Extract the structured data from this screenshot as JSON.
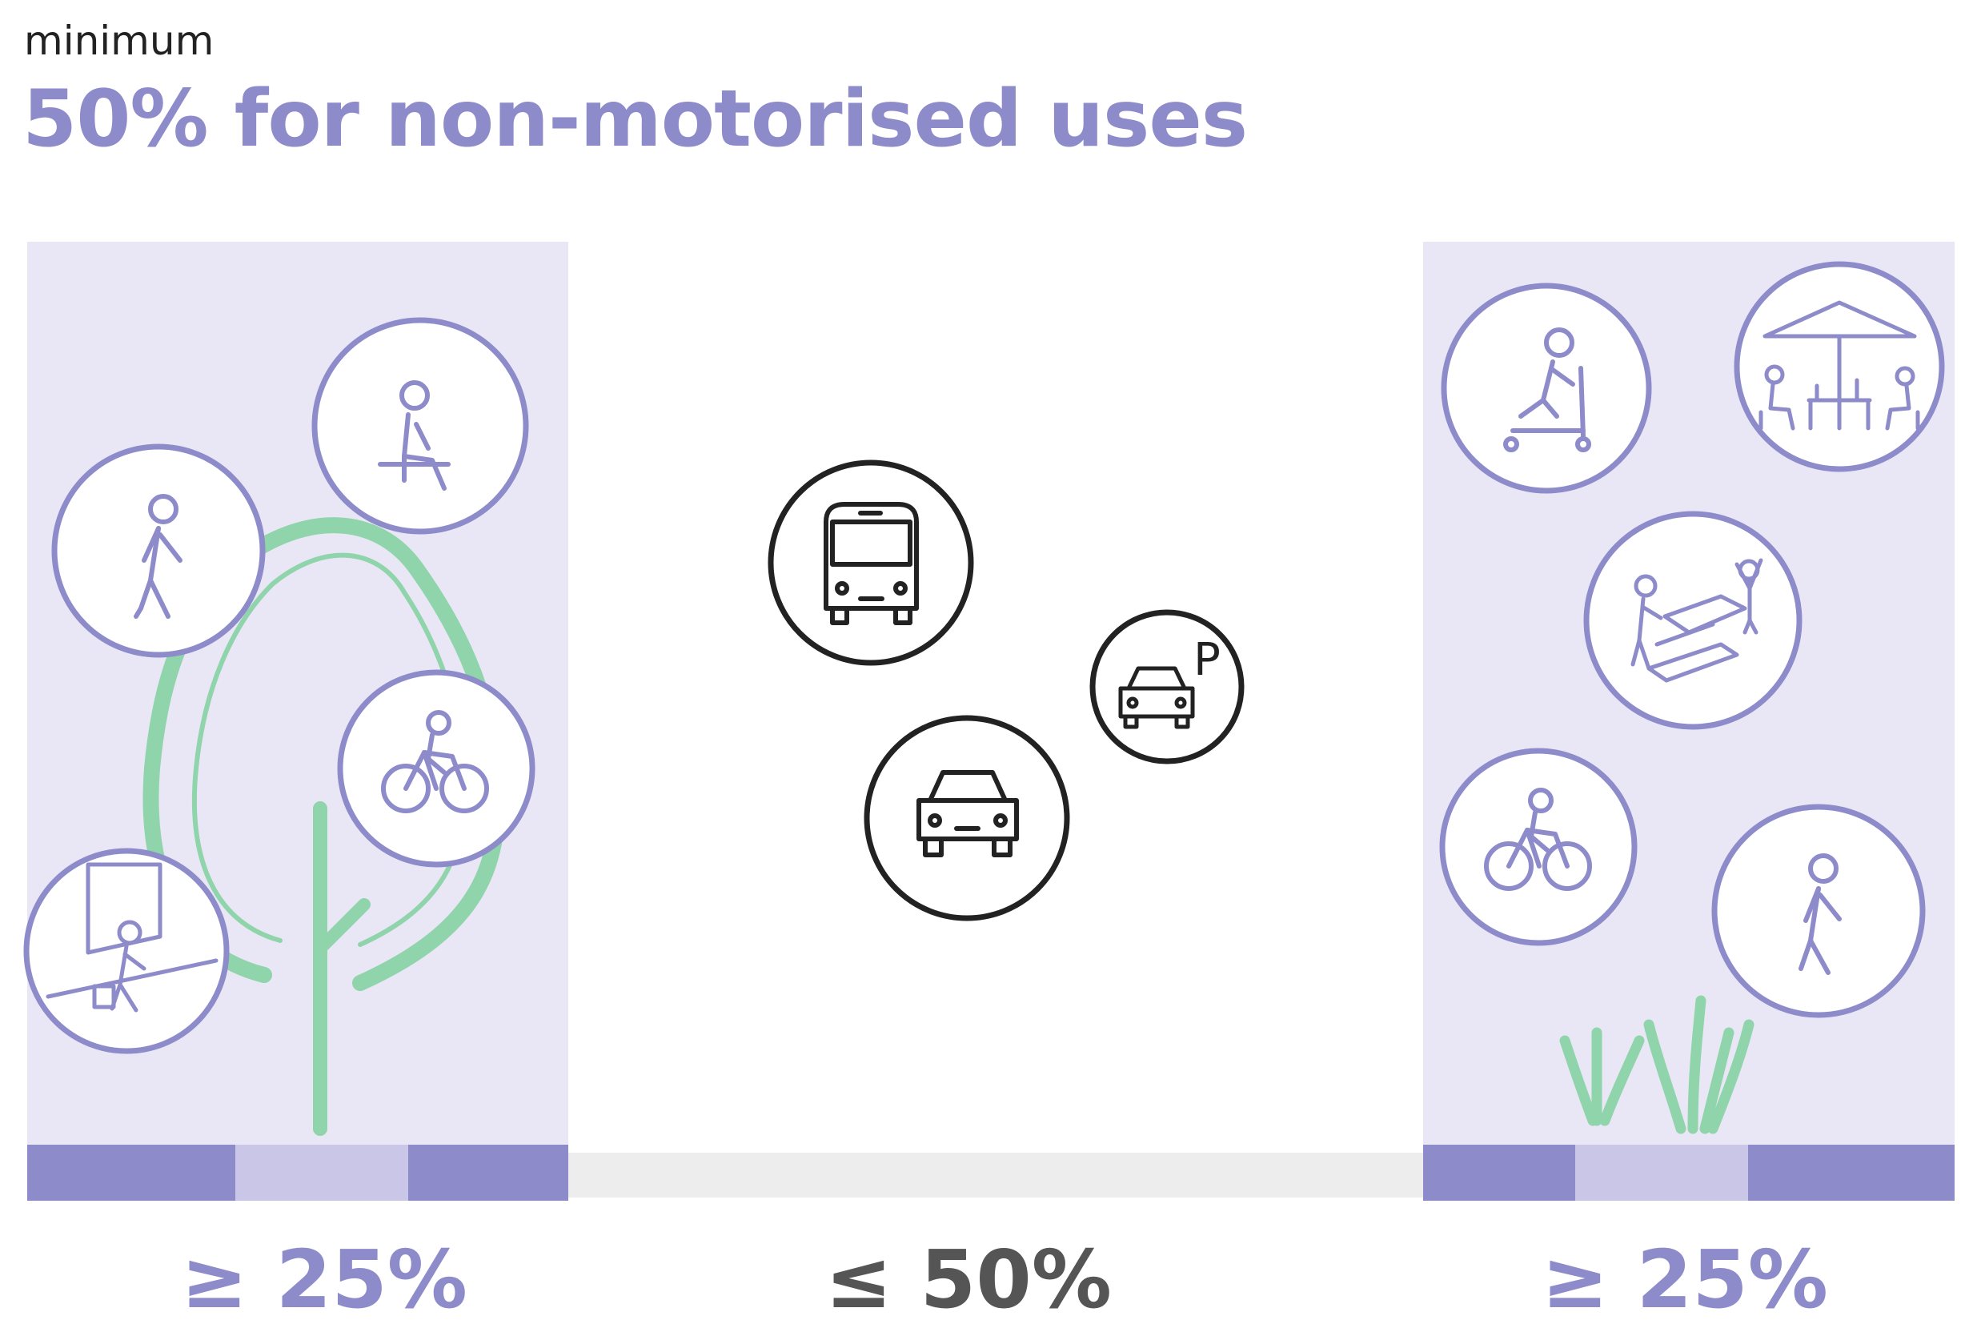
{
  "header": {
    "subtitle": "minimum",
    "title": "50% for non-motorised uses"
  },
  "zones": [
    {
      "name": "left-sidewalk",
      "share": "≥ 25%",
      "icons": [
        "walking-person-icon",
        "sitting-person-icon",
        "bicycle-icon",
        "shopper-entering-shop-icon",
        "tree-icon"
      ]
    },
    {
      "name": "carriageway",
      "share": "≤ 50%",
      "icons": [
        "bus-icon",
        "car-icon",
        "parked-car-icon"
      ]
    },
    {
      "name": "right-sidewalk",
      "share": "≥ 25%",
      "icons": [
        "scooter-icon",
        "cafe-umbrella-icon",
        "hopscotch-play-icon",
        "bicycle-icon",
        "walking-person-icon",
        "grass-icon"
      ]
    }
  ],
  "parking_label": "P",
  "colors": {
    "accent": "#8e8bca",
    "zone_fill": "#e9e7f6",
    "strip_dark": "#8e8bca",
    "strip_light": "#c9c6e8",
    "road_strip": "#ededed",
    "tree_green": "#8fd4aa",
    "vehicle_stroke": "#222222"
  }
}
